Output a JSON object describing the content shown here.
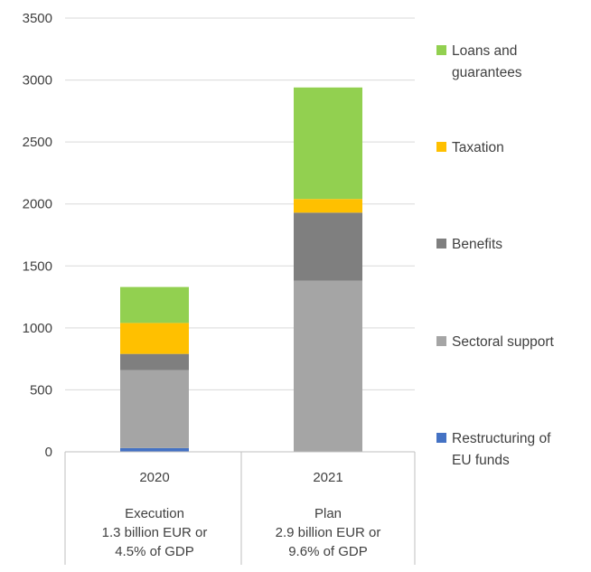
{
  "chart_data": {
    "type": "bar",
    "stacked": true,
    "categories": [
      "2020",
      "2021"
    ],
    "category_sublabels": [
      [
        "Execution",
        "1.3 billion EUR or",
        "4.5% of GDP"
      ],
      [
        "Plan",
        "2.9 billion EUR or",
        "9.6% of GDP"
      ]
    ],
    "series": [
      {
        "name": "Restructuring of EU funds",
        "legend_lines": [
          "Restructuring of",
          "EU funds"
        ],
        "color": "#4472C4",
        "values": [
          30,
          0
        ]
      },
      {
        "name": "Sectoral support",
        "legend_lines": [
          "Sectoral support"
        ],
        "color": "#A5A5A5",
        "values": [
          630,
          1380
        ]
      },
      {
        "name": "Benefits",
        "legend_lines": [
          "Benefits"
        ],
        "color": "#7F7F7F",
        "values": [
          130,
          550
        ]
      },
      {
        "name": "Taxation",
        "legend_lines": [
          "Taxation"
        ],
        "color": "#FFC000",
        "values": [
          250,
          110
        ]
      },
      {
        "name": "Loans and guarantees",
        "legend_lines": [
          "Loans and",
          "guarantees"
        ],
        "color": "#92D050",
        "values": [
          290,
          900
        ]
      }
    ],
    "ylim": [
      0,
      3500
    ],
    "yticks": [
      0,
      500,
      1000,
      1500,
      2000,
      2500,
      3000,
      3500
    ],
    "grid": true,
    "legend_position": "right"
  }
}
